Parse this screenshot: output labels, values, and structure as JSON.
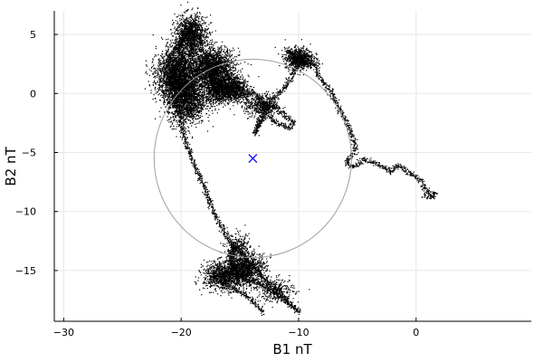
{
  "chart_data": {
    "type": "scatter",
    "xlabel": "B1 nT",
    "ylabel": "B2 nT",
    "xlim": [
      -30.8,
      9.8
    ],
    "ylim": [
      -19.3,
      7.0
    ],
    "xticks": [
      -30,
      -20,
      -10,
      0
    ],
    "yticks": [
      5,
      0,
      -5,
      -10,
      -15
    ],
    "xtick_labels": [
      "−30",
      "−20",
      "−10",
      "0"
    ],
    "ytick_labels": [
      "5",
      "0",
      "−5",
      "−10",
      "−15"
    ],
    "grid": true,
    "legend": "none",
    "colors": {
      "points": "#000000",
      "circle": "#a0a0a0",
      "center": "#0000ff"
    },
    "center_marker": {
      "shape": "x",
      "x": -13.9,
      "y": -5.5
    },
    "circle": {
      "cx": -13.9,
      "cy": -5.5,
      "r": 8.4
    },
    "trace_path": [
      [
        -13.0,
        -18.6
      ],
      [
        -14.0,
        -17.5
      ],
      [
        -15.0,
        -16.8
      ],
      [
        -16.5,
        -16.0
      ],
      [
        -17.2,
        -15.5
      ],
      [
        -16.0,
        -15.0
      ],
      [
        -15.0,
        -14.5
      ],
      [
        -14.3,
        -14.8
      ],
      [
        -14.8,
        -15.5
      ],
      [
        -15.6,
        -14.6
      ],
      [
        -16.0,
        -13.5
      ],
      [
        -15.3,
        -13.0
      ],
      [
        -14.6,
        -13.8
      ],
      [
        -14.2,
        -14.4
      ],
      [
        -13.6,
        -14.9
      ],
      [
        -13.2,
        -15.5
      ],
      [
        -12.7,
        -16.0
      ],
      [
        -12.0,
        -16.5
      ],
      [
        -11.3,
        -17.2
      ],
      [
        -10.8,
        -17.8
      ],
      [
        -10.0,
        -18.4
      ],
      [
        -11.8,
        -17.0
      ],
      [
        -13.4,
        -16.0
      ],
      [
        -14.6,
        -15.8
      ],
      [
        -15.4,
        -15.2
      ],
      [
        -15.9,
        -14.2
      ],
      [
        -15.5,
        -13.2
      ],
      [
        -15.9,
        -12.5
      ],
      [
        -16.6,
        -11.3
      ],
      [
        -17.2,
        -10.2
      ],
      [
        -17.6,
        -9.2
      ],
      [
        -18.0,
        -8.0
      ],
      [
        -18.6,
        -6.8
      ],
      [
        -19.1,
        -5.5
      ],
      [
        -19.6,
        -4.2
      ],
      [
        -19.9,
        -3.0
      ],
      [
        -20.1,
        -2.0
      ],
      [
        -20.3,
        -1.0
      ],
      [
        -20.5,
        0.0
      ],
      [
        -21.0,
        1.0
      ],
      [
        -20.6,
        2.0
      ],
      [
        -20.0,
        3.0
      ],
      [
        -20.4,
        4.0
      ],
      [
        -19.8,
        4.8
      ],
      [
        -19.2,
        5.6
      ],
      [
        -19.0,
        6.0
      ],
      [
        -19.6,
        5.2
      ],
      [
        -20.2,
        4.2
      ],
      [
        -20.9,
        3.2
      ],
      [
        -21.4,
        2.2
      ],
      [
        -21.0,
        1.2
      ],
      [
        -20.4,
        0.6
      ],
      [
        -19.6,
        0.2
      ],
      [
        -19.0,
        1.0
      ],
      [
        -18.6,
        2.2
      ],
      [
        -18.0,
        3.0
      ],
      [
        -17.4,
        3.2
      ],
      [
        -17.0,
        2.6
      ],
      [
        -17.6,
        1.6
      ],
      [
        -17.0,
        0.8
      ],
      [
        -16.6,
        1.2
      ],
      [
        -16.0,
        1.5
      ],
      [
        -15.5,
        1.0
      ],
      [
        -15.0,
        0.4
      ],
      [
        -14.6,
        -0.2
      ],
      [
        -14.0,
        0.2
      ],
      [
        -13.4,
        -0.4
      ],
      [
        -13.0,
        -0.9
      ],
      [
        -12.6,
        -1.4
      ],
      [
        -12.2,
        -0.9
      ],
      [
        -11.6,
        -1.5
      ],
      [
        -11.0,
        -2.0
      ],
      [
        -10.4,
        -2.4
      ],
      [
        -10.8,
        -2.9
      ],
      [
        -11.5,
        -2.6
      ],
      [
        -12.2,
        -2.3
      ],
      [
        -12.8,
        -1.6
      ],
      [
        -13.4,
        -2.6
      ],
      [
        -13.8,
        -3.4
      ],
      [
        -12.8,
        -1.0
      ],
      [
        -11.8,
        0.0
      ],
      [
        -11.0,
        0.8
      ],
      [
        -10.6,
        1.6
      ],
      [
        -10.2,
        2.4
      ],
      [
        -10.6,
        3.3
      ],
      [
        -11.0,
        3.7
      ],
      [
        -10.4,
        3.2
      ],
      [
        -9.8,
        2.8
      ],
      [
        -9.2,
        2.4
      ],
      [
        -8.6,
        2.6
      ],
      [
        -8.4,
        1.6
      ],
      [
        -8.0,
        1.0
      ],
      [
        -7.4,
        0.4
      ],
      [
        -7.0,
        -0.4
      ],
      [
        -6.6,
        -1.2
      ],
      [
        -6.2,
        -2.0
      ],
      [
        -5.8,
        -2.8
      ],
      [
        -5.4,
        -3.8
      ],
      [
        -5.2,
        -4.6
      ],
      [
        -5.6,
        -5.2
      ],
      [
        -6.0,
        -5.8
      ],
      [
        -5.4,
        -6.2
      ],
      [
        -4.6,
        -5.6
      ],
      [
        -3.6,
        -5.8
      ],
      [
        -2.8,
        -6.2
      ],
      [
        -2.2,
        -6.6
      ],
      [
        -1.6,
        -6.0
      ],
      [
        -1.0,
        -6.4
      ],
      [
        -0.4,
        -6.8
      ],
      [
        0.2,
        -7.2
      ],
      [
        0.6,
        -7.8
      ],
      [
        1.0,
        -8.4
      ],
      [
        1.6,
        -8.4
      ],
      [
        1.2,
        -8.8
      ],
      [
        0.6,
        -8.6
      ]
    ],
    "clusters": [
      {
        "cx": -19.2,
        "cy": 4.8,
        "sx": 0.7,
        "sy": 0.9,
        "n": 1400
      },
      {
        "cx": -20.3,
        "cy": 1.5,
        "sx": 0.9,
        "sy": 1.1,
        "n": 2600
      },
      {
        "cx": -19.6,
        "cy": -0.6,
        "sx": 0.8,
        "sy": 1.0,
        "n": 1500
      },
      {
        "cx": -17.3,
        "cy": 2.2,
        "sx": 0.9,
        "sy": 0.8,
        "n": 1800
      },
      {
        "cx": -16.9,
        "cy": 0.4,
        "sx": 0.7,
        "sy": 0.6,
        "n": 1100
      },
      {
        "cx": -15.5,
        "cy": 0.4,
        "sx": 0.6,
        "sy": 0.5,
        "n": 700
      },
      {
        "cx": -13.2,
        "cy": -1.0,
        "sx": 0.7,
        "sy": 0.5,
        "n": 500
      },
      {
        "cx": -10.0,
        "cy": 3.0,
        "sx": 0.6,
        "sy": 0.45,
        "n": 800
      },
      {
        "cx": -16.3,
        "cy": -15.4,
        "sx": 0.9,
        "sy": 0.6,
        "n": 1100
      },
      {
        "cx": -14.4,
        "cy": -14.8,
        "sx": 0.8,
        "sy": 0.7,
        "n": 900
      },
      {
        "cx": -15.2,
        "cy": -13.1,
        "sx": 0.5,
        "sy": 0.6,
        "n": 300
      },
      {
        "cx": -12.0,
        "cy": -16.6,
        "sx": 0.8,
        "sy": 0.5,
        "n": 300
      }
    ]
  }
}
